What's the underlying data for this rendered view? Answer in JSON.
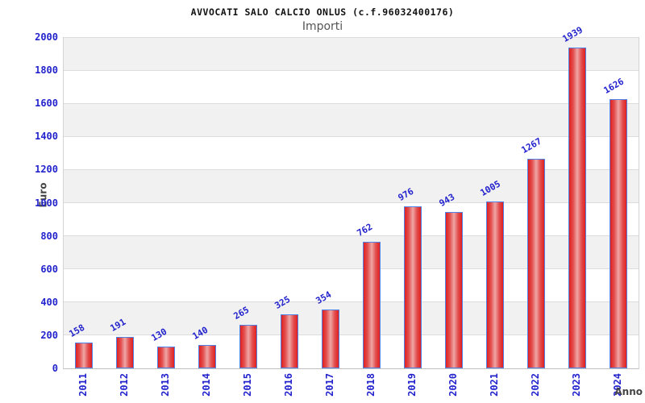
{
  "chart_data": {
    "type": "bar",
    "title": "AVVOCATI SALO CALCIO ONLUS (c.f.96032400176)",
    "subtitle": "Importi",
    "xlabel": "Anno",
    "ylabel": "Euro",
    "categories": [
      "2011",
      "2012",
      "2013",
      "2014",
      "2015",
      "2016",
      "2017",
      "2018",
      "2019",
      "2020",
      "2021",
      "2022",
      "2023",
      "2024"
    ],
    "values": [
      158,
      191,
      130,
      140,
      265,
      325,
      354,
      762,
      976,
      943,
      1005,
      1267,
      1939,
      1626
    ],
    "ylim": [
      0,
      2000
    ],
    "ytick_step": 200,
    "ytick_labels": [
      "0",
      "200",
      "400",
      "600",
      "800",
      "1000",
      "1200",
      "1400",
      "1600",
      "1800",
      "2000"
    ],
    "grid": "horizontal gridline every 200 with alternating gray/white bands",
    "legend": null,
    "colors": {
      "label_blue": "#2323cd",
      "bar_border": "#4f83e8",
      "bar_red_edge": "#e01f1f",
      "bar_red_center": "#efa6a6",
      "band_gray": "#f1f1f1",
      "grid_line": "#dcdcdc",
      "axis_line": "#c0c0c0",
      "title_color": "#111111",
      "subtitle_color": "#555555",
      "axis_label_color": "#444444"
    }
  }
}
